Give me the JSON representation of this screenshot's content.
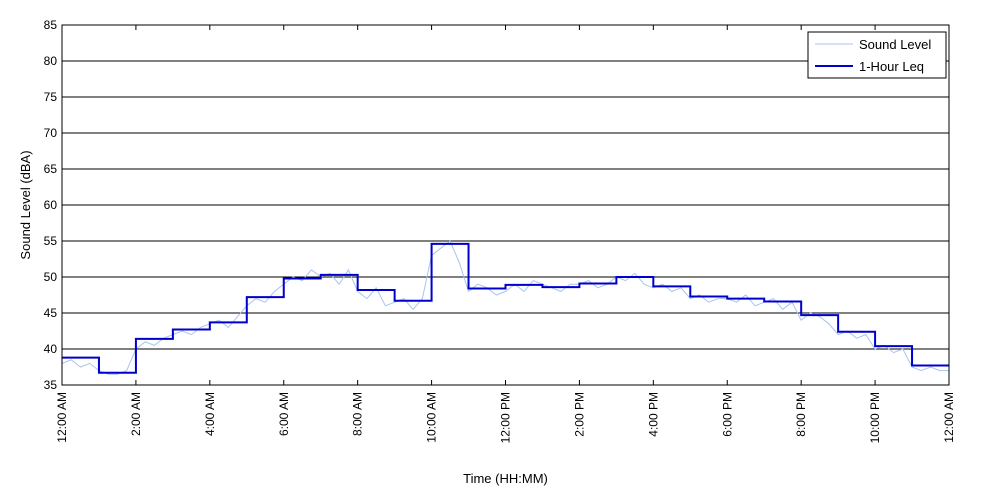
{
  "chart_data": {
    "type": "line",
    "title": "",
    "xlabel": "Time (HH:MM)",
    "ylabel": "Sound Level (dBA)",
    "ylim": [
      35,
      85
    ],
    "xlim_hours": [
      0,
      24
    ],
    "yticks": [
      35,
      40,
      45,
      50,
      55,
      60,
      65,
      70,
      75,
      80,
      85
    ],
    "xticks": [
      {
        "hour": 0,
        "label": "12:00 AM"
      },
      {
        "hour": 2,
        "label": "2:00 AM"
      },
      {
        "hour": 4,
        "label": "4:00 AM"
      },
      {
        "hour": 6,
        "label": "6:00 AM"
      },
      {
        "hour": 8,
        "label": "8:00 AM"
      },
      {
        "hour": 10,
        "label": "10:00 AM"
      },
      {
        "hour": 12,
        "label": "12:00 PM"
      },
      {
        "hour": 14,
        "label": "2:00 PM"
      },
      {
        "hour": 16,
        "label": "4:00 PM"
      },
      {
        "hour": 18,
        "label": "6:00 PM"
      },
      {
        "hour": 20,
        "label": "8:00 PM"
      },
      {
        "hour": 22,
        "label": "10:00 PM"
      },
      {
        "hour": 24,
        "label": "12:00 AM"
      }
    ],
    "grid": "horizontal",
    "legend_position": "top-right",
    "series": [
      {
        "name": "Sound Level",
        "color": "#a8c4f0",
        "style": "thin-line",
        "x_hours": [
          0,
          0.25,
          0.5,
          0.75,
          1,
          1.25,
          1.5,
          1.75,
          2,
          2.25,
          2.5,
          2.75,
          3,
          3.25,
          3.5,
          3.75,
          4,
          4.25,
          4.5,
          4.75,
          5,
          5.25,
          5.5,
          5.75,
          6,
          6.25,
          6.5,
          6.75,
          7,
          7.25,
          7.5,
          7.75,
          8,
          8.25,
          8.5,
          8.75,
          9,
          9.25,
          9.5,
          9.75,
          10,
          10.25,
          10.5,
          10.75,
          11,
          11.25,
          11.5,
          11.75,
          12,
          12.25,
          12.5,
          12.75,
          13,
          13.25,
          13.5,
          13.75,
          14,
          14.25,
          14.5,
          14.75,
          15,
          15.25,
          15.5,
          15.75,
          16,
          16.25,
          16.5,
          16.75,
          17,
          17.25,
          17.5,
          17.75,
          18,
          18.25,
          18.5,
          18.75,
          19,
          19.25,
          19.5,
          19.75,
          20,
          20.25,
          20.5,
          20.75,
          21,
          21.25,
          21.5,
          21.75,
          22,
          22.25,
          22.5,
          22.75,
          23,
          23.25,
          23.5,
          23.75,
          24
        ],
        "values": [
          38,
          38.5,
          37.5,
          38,
          37,
          36.5,
          36.5,
          37,
          40,
          41,
          40.5,
          41.5,
          42,
          42.5,
          42,
          43,
          43.5,
          44,
          43,
          44.5,
          46,
          47,
          46.5,
          48,
          49,
          50,
          49.5,
          51,
          50,
          50.5,
          49,
          51,
          48,
          47,
          48.5,
          46,
          46.5,
          47,
          45.5,
          47,
          53,
          54,
          55,
          52,
          48,
          49,
          48.5,
          47.5,
          48,
          49,
          48,
          49.5,
          49,
          48.5,
          48,
          49,
          49,
          49.5,
          48.5,
          49,
          50,
          49.5,
          50.5,
          49,
          48.5,
          49,
          48,
          48.5,
          47,
          47.5,
          46.5,
          47,
          47,
          46.5,
          47.5,
          46,
          46.5,
          47,
          45.5,
          46.5,
          44,
          45,
          44.5,
          43.5,
          42,
          42.5,
          41.5,
          42,
          40,
          40.5,
          39.5,
          40,
          37.5,
          37,
          37.5,
          37,
          37
        ]
      },
      {
        "name": "1-Hour Leq",
        "color": "#0000cc",
        "style": "step",
        "hours": [
          0,
          1,
          2,
          3,
          4,
          5,
          6,
          7,
          8,
          9,
          10,
          11,
          12,
          13,
          14,
          15,
          16,
          17,
          18,
          19,
          20,
          21,
          22,
          23
        ],
        "values": [
          38.8,
          36.7,
          41.4,
          42.7,
          43.7,
          47.2,
          49.8,
          50.3,
          48.2,
          46.7,
          54.6,
          48.4,
          48.9,
          48.6,
          49.1,
          50.0,
          48.7,
          47.3,
          47.0,
          46.6,
          44.7,
          42.4,
          40.4,
          37.7
        ]
      }
    ]
  }
}
